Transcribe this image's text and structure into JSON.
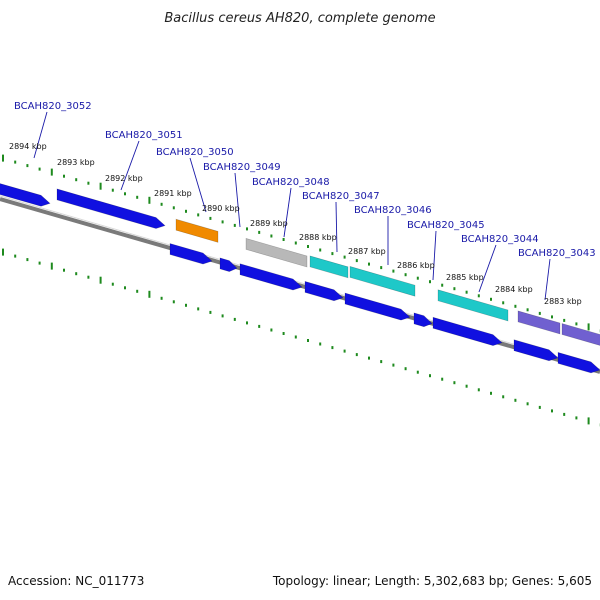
{
  "title": "Bacillus cereus AH820, complete genome",
  "footer": {
    "accession": "Accession: NC_011773",
    "summary": "Topology: linear; Length: 5,302,683 bp; Genes: 5,605"
  },
  "colors": {
    "background": "#ffffff",
    "backbone": "#7a7a7a",
    "ruler": "#1e8a1e",
    "label": "#1a1aa8",
    "cds_blue": "#1010e0",
    "cds_orange": "#f08a00",
    "cds_grey": "#b8b8b8",
    "cds_cyan": "#1ec8c8",
    "cds_purple": "#7060d0"
  },
  "kbp_ticks": [
    "2894 kbp",
    "2893 kbp",
    "2892 kbp",
    "2891 kbp",
    "2890 kbp",
    "2889 kbp",
    "2888 kbp",
    "2887 kbp",
    "2886 kbp",
    "2885 kbp",
    "2884 kbp",
    "2883 kbp"
  ],
  "gene_labels": [
    "BCAH820_3052",
    "BCAH820_3051",
    "BCAH820_3050",
    "BCAH820_3049",
    "BCAH820_3048",
    "BCAH820_3047",
    "BCAH820_3046",
    "BCAH820_3045",
    "BCAH820_3044",
    "BCAH820_3043"
  ]
}
